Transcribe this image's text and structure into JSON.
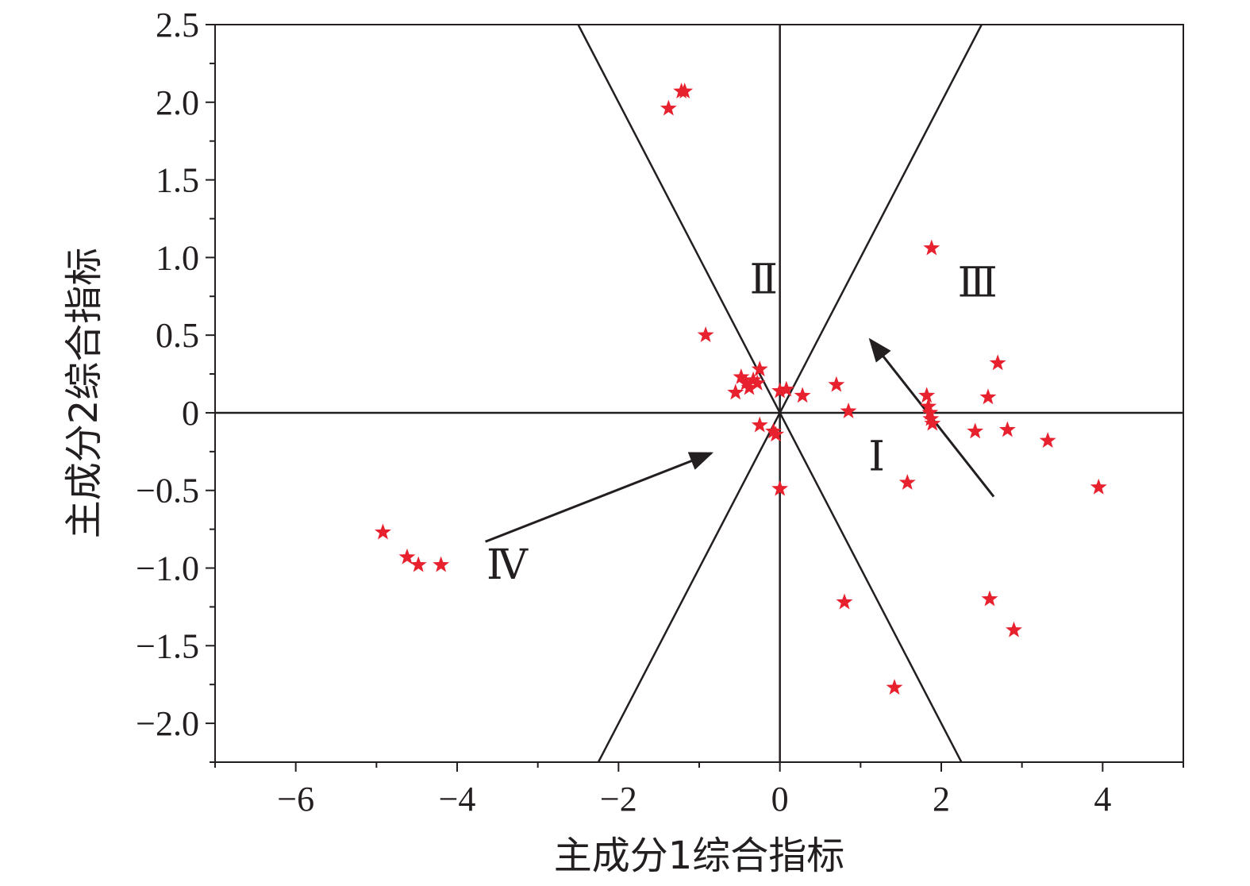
{
  "chart_data": {
    "type": "scatter",
    "xlabel": "主成分1综合指标",
    "ylabel": "主成分2综合指标",
    "xlim": [
      -7,
      5
    ],
    "ylim": [
      -2.25,
      2.5
    ],
    "x_ticks": [
      -6,
      -4,
      -2,
      0,
      2,
      4
    ],
    "x_tick_labels": [
      "−6",
      "−4",
      "−2",
      "0",
      "2",
      "4"
    ],
    "y_ticks": [
      2.5,
      2.0,
      1.5,
      1.0,
      0.5,
      0,
      -0.5,
      -1.0,
      -1.5,
      -2.0
    ],
    "y_tick_labels": [
      "2.5",
      "2.0",
      "1.5",
      "1.0",
      "0.5",
      "0",
      "−0.5",
      "−1.0",
      "−1.5",
      "−2.0"
    ],
    "marker": "star",
    "marker_color": "#e8212e",
    "line_color": "#231f20",
    "grid": false,
    "points": [
      {
        "x": -1.38,
        "y": 1.96
      },
      {
        "x": -1.22,
        "y": 2.07
      },
      {
        "x": -1.18,
        "y": 2.07
      },
      {
        "x": -0.92,
        "y": 0.5
      },
      {
        "x": -0.55,
        "y": 0.13
      },
      {
        "x": -0.48,
        "y": 0.23
      },
      {
        "x": -0.42,
        "y": 0.19
      },
      {
        "x": -0.38,
        "y": 0.16
      },
      {
        "x": -0.33,
        "y": 0.21
      },
      {
        "x": -0.28,
        "y": 0.19
      },
      {
        "x": -0.25,
        "y": 0.28
      },
      {
        "x": -0.25,
        "y": -0.08
      },
      {
        "x": -0.08,
        "y": -0.12
      },
      {
        "x": -0.05,
        "y": -0.14
      },
      {
        "x": 0.0,
        "y": 0.14
      },
      {
        "x": 0.08,
        "y": 0.15
      },
      {
        "x": 0.28,
        "y": 0.11
      },
      {
        "x": 0.0,
        "y": -0.49
      },
      {
        "x": 0.7,
        "y": 0.18
      },
      {
        "x": 0.85,
        "y": 0.01
      },
      {
        "x": 0.8,
        "y": -1.22
      },
      {
        "x": 1.42,
        "y": -1.77
      },
      {
        "x": 1.58,
        "y": -0.45
      },
      {
        "x": 1.82,
        "y": 0.11
      },
      {
        "x": 1.84,
        "y": 0.04
      },
      {
        "x": 1.86,
        "y": 0.0
      },
      {
        "x": 1.87,
        "y": -0.04
      },
      {
        "x": 1.89,
        "y": -0.07
      },
      {
        "x": 1.88,
        "y": 1.06
      },
      {
        "x": 2.42,
        "y": -0.12
      },
      {
        "x": 2.58,
        "y": 0.1
      },
      {
        "x": 2.7,
        "y": 0.32
      },
      {
        "x": 2.82,
        "y": -0.11
      },
      {
        "x": 3.32,
        "y": -0.18
      },
      {
        "x": 3.95,
        "y": -0.48
      },
      {
        "x": 2.6,
        "y": -1.2
      },
      {
        "x": 2.9,
        "y": -1.4
      },
      {
        "x": -4.92,
        "y": -0.77
      },
      {
        "x": -4.62,
        "y": -0.93
      },
      {
        "x": -4.48,
        "y": -0.98
      },
      {
        "x": -4.2,
        "y": -0.98
      }
    ],
    "reference_lines": [
      {
        "x1": 0,
        "y1": -2.25,
        "x2": 0,
        "y2": 2.5
      },
      {
        "x1": -7,
        "y1": 0,
        "x2": 5,
        "y2": 0
      },
      {
        "x1": -2.5,
        "y1": 2.5,
        "x2": 2.25,
        "y2": -2.25
      },
      {
        "x1": 2.5,
        "y1": 2.5,
        "x2": -2.25,
        "y2": -2.25
      }
    ],
    "arrows": [
      {
        "from": [
          -3.65,
          -0.83
        ],
        "to": [
          -0.85,
          -0.26
        ]
      },
      {
        "from": [
          2.65,
          -0.54
        ],
        "to": [
          1.12,
          0.47
        ]
      }
    ],
    "region_labels": [
      {
        "text": "Ⅰ",
        "x": 1.2,
        "y": -0.37
      },
      {
        "text": "Ⅱ",
        "x": -0.2,
        "y": 0.77
      },
      {
        "text": "Ⅲ",
        "x": 2.45,
        "y": 0.75
      },
      {
        "text": "Ⅳ",
        "x": -3.38,
        "y": -1.07
      }
    ]
  }
}
